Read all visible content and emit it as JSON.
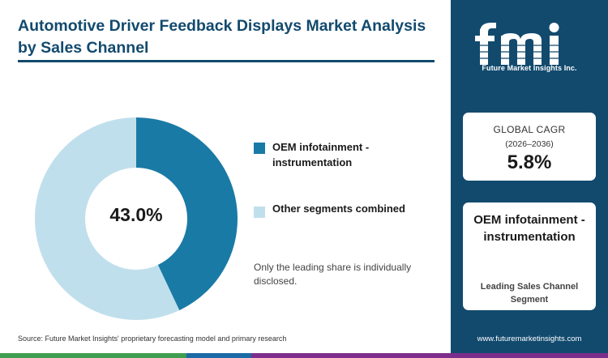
{
  "title": "Automotive Driver Feedback Displays Market Analysis by Sales Channel",
  "chart_data": {
    "type": "pie",
    "style": "donut",
    "slices": [
      {
        "label": "OEM infotainment - instrumentation",
        "value": 43.0,
        "color": "#1a7aa6"
      },
      {
        "label": "Other segments combined",
        "value": 57.0,
        "color": "#c0dfec"
      }
    ],
    "center_label": "43.0%",
    "legend_position": "right"
  },
  "legend": {
    "items": [
      {
        "label": "OEM infotainment - instrumentation",
        "color": "#1a7aa6"
      },
      {
        "label": "Other segments combined",
        "color": "#c0dfec"
      }
    ]
  },
  "note": "Only the leading share is individually disclosed.",
  "source": "Source: Future Market Insights' proprietary forecasting model and primary research",
  "sidebar": {
    "logo_text": "fmi",
    "logo_subtitle": "Future Market Insights Inc.",
    "cagr": {
      "label": "GLOBAL CAGR",
      "period": "(2026–2036)",
      "value": "5.8%"
    },
    "leading_segment": {
      "name": "OEM infotainment - instrumentation",
      "caption": "Leading Sales Channel Segment"
    },
    "website": "www.futuremarketinsights.com"
  },
  "colors": {
    "navy": "#124a6e",
    "primary": "#1a7aa6",
    "light": "#c0dfec",
    "bar": [
      "#3f9e50",
      "#1a6aa6",
      "#7d2e8c"
    ]
  }
}
